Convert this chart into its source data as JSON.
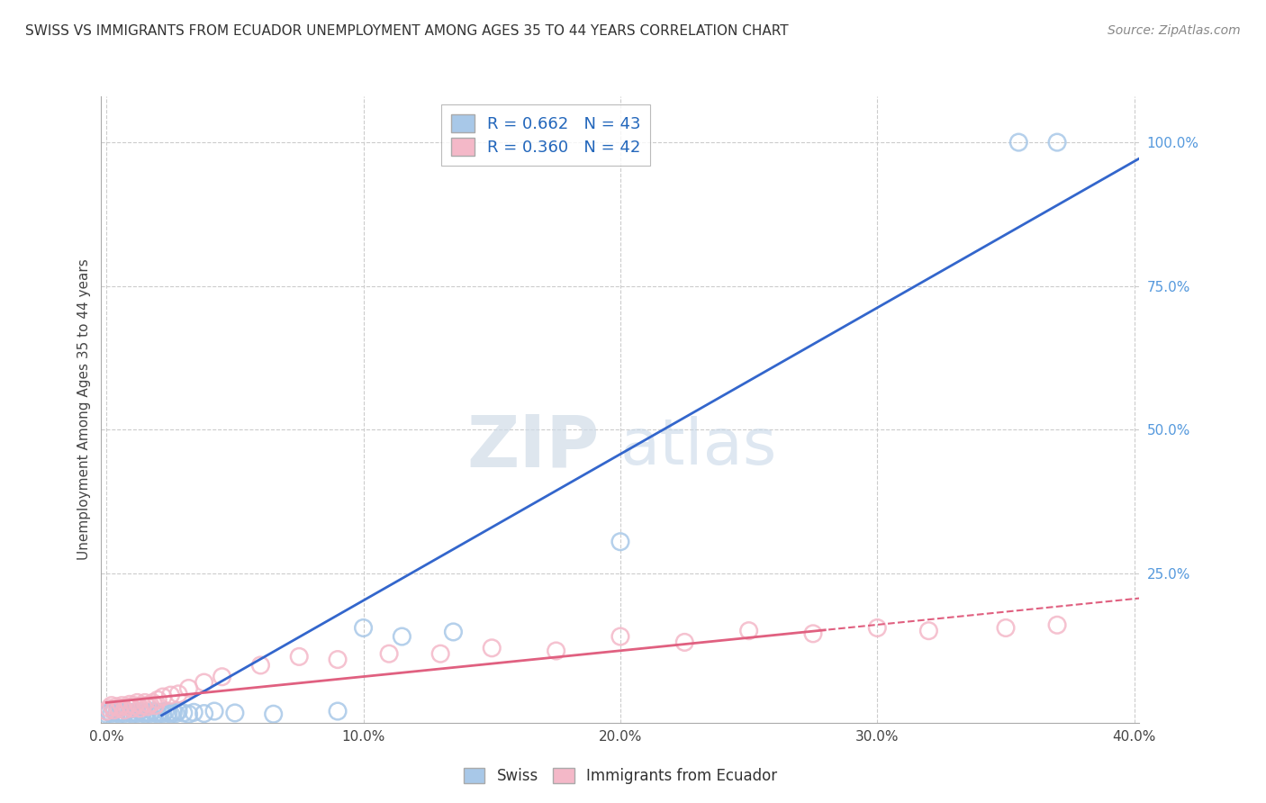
{
  "title": "SWISS VS IMMIGRANTS FROM ECUADOR UNEMPLOYMENT AMONG AGES 35 TO 44 YEARS CORRELATION CHART",
  "source": "Source: ZipAtlas.com",
  "ylabel": "Unemployment Among Ages 35 to 44 years",
  "watermark_zip": "ZIP",
  "watermark_atlas": "atlas",
  "swiss_R": "0.662",
  "swiss_N": "43",
  "ecuador_R": "0.360",
  "ecuador_N": "42",
  "xlim": [
    -0.002,
    0.402
  ],
  "ylim": [
    -0.01,
    1.08
  ],
  "xtick_labels": [
    "0.0%",
    "10.0%",
    "20.0%",
    "30.0%",
    "40.0%"
  ],
  "xtick_vals": [
    0.0,
    0.1,
    0.2,
    0.3,
    0.4
  ],
  "ytick_labels": [
    "100.0%",
    "75.0%",
    "50.0%",
    "25.0%"
  ],
  "ytick_vals": [
    1.0,
    0.75,
    0.5,
    0.25
  ],
  "swiss_color": "#a8c8e8",
  "swiss_edge_color": "#5599cc",
  "ecuador_color": "#f4b8c8",
  "ecuador_edge_color": "#e87090",
  "swiss_line_color": "#3366cc",
  "ecuador_line_color": "#e06080",
  "background_color": "#ffffff",
  "grid_color": "#cccccc",
  "swiss_x": [
    0.0,
    0.001,
    0.002,
    0.003,
    0.004,
    0.005,
    0.006,
    0.007,
    0.008,
    0.009,
    0.01,
    0.011,
    0.012,
    0.013,
    0.014,
    0.015,
    0.016,
    0.017,
    0.018,
    0.019,
    0.02,
    0.021,
    0.022,
    0.023,
    0.024,
    0.025,
    0.026,
    0.027,
    0.028,
    0.03,
    0.032,
    0.034,
    0.038,
    0.042,
    0.05,
    0.065,
    0.09,
    0.1,
    0.115,
    0.135,
    0.2,
    0.355,
    0.37
  ],
  "swiss_y": [
    0.005,
    0.008,
    0.006,
    0.01,
    0.007,
    0.005,
    0.008,
    0.006,
    0.01,
    0.007,
    0.005,
    0.008,
    0.006,
    0.01,
    0.007,
    0.005,
    0.008,
    0.006,
    0.01,
    0.007,
    0.005,
    0.008,
    0.006,
    0.01,
    0.007,
    0.005,
    0.008,
    0.006,
    0.01,
    0.007,
    0.005,
    0.008,
    0.006,
    0.01,
    0.007,
    0.005,
    0.01,
    0.155,
    0.14,
    0.148,
    0.305,
    1.0,
    1.0
  ],
  "ecuador_x": [
    0.0,
    0.001,
    0.002,
    0.003,
    0.004,
    0.005,
    0.006,
    0.007,
    0.008,
    0.009,
    0.01,
    0.011,
    0.012,
    0.013,
    0.014,
    0.015,
    0.016,
    0.017,
    0.018,
    0.019,
    0.02,
    0.022,
    0.025,
    0.028,
    0.032,
    0.038,
    0.045,
    0.06,
    0.075,
    0.09,
    0.11,
    0.13,
    0.15,
    0.175,
    0.2,
    0.225,
    0.25,
    0.275,
    0.3,
    0.32,
    0.35,
    0.37
  ],
  "ecuador_y": [
    0.01,
    0.015,
    0.02,
    0.012,
    0.018,
    0.015,
    0.02,
    0.012,
    0.018,
    0.022,
    0.015,
    0.02,
    0.025,
    0.015,
    0.02,
    0.025,
    0.018,
    0.022,
    0.025,
    0.02,
    0.03,
    0.035,
    0.038,
    0.04,
    0.05,
    0.06,
    0.07,
    0.09,
    0.105,
    0.1,
    0.11,
    0.11,
    0.12,
    0.115,
    0.14,
    0.13,
    0.15,
    0.145,
    0.155,
    0.15,
    0.155,
    0.16
  ]
}
